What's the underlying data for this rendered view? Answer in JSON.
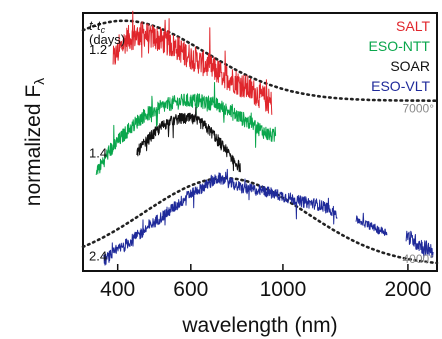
{
  "chart_data": {
    "type": "line",
    "xlabel": "wavelength (nm)",
    "ylabel_main": "normalized F",
    "ylabel_sub": "λ",
    "x_scale": "log",
    "xlim": [
      330,
      2350
    ],
    "x_ticks": [
      400,
      600,
      1000,
      2000
    ],
    "x_tick_labels": [
      "400",
      "600",
      "1000",
      "2000"
    ],
    "epoch_header": "t-t",
    "epoch_header_sub": "c",
    "epoch_units": "(days)",
    "legend": [
      {
        "label": "SALT",
        "color": "#e0262c"
      },
      {
        "label": "ESO-NTT",
        "color": "#0aa64c"
      },
      {
        "label": "SOAR",
        "color": "#111111"
      },
      {
        "label": "ESO-VLT",
        "color": "#1f2a9a"
      }
    ],
    "epochs": [
      {
        "label": "1.2",
        "level": 0.86
      },
      {
        "label": "1.4",
        "level": 0.46
      },
      {
        "label": "2.4",
        "level": 0.06
      }
    ],
    "blackbody": [
      {
        "label": "7000°",
        "temperature_K": 7000,
        "peak_nm": 414,
        "peak_level": 0.97,
        "baseline": 0.66,
        "color": "#222222"
      },
      {
        "label": "4000°",
        "temperature_K": 4000,
        "peak_nm": 725,
        "peak_level": 0.36,
        "baseline": 0.02,
        "color": "#222222"
      }
    ],
    "series": [
      {
        "name": "SALT",
        "color": "#e0262c",
        "noise": 0.05,
        "x_nm": [
          390,
          420,
          460,
          500,
          550,
          600,
          650,
          700,
          760,
          820,
          880,
          920,
          940
        ],
        "level": [
          0.82,
          0.9,
          0.92,
          0.9,
          0.87,
          0.83,
          0.8,
          0.77,
          0.74,
          0.71,
          0.68,
          0.66,
          0.65
        ]
      },
      {
        "name": "ESO-NTT",
        "color": "#0aa64c",
        "noise": 0.028,
        "x_nm": [
          355,
          380,
          420,
          460,
          500,
          540,
          580,
          620,
          680,
          740,
          800,
          860,
          920,
          960
        ],
        "level": [
          0.38,
          0.46,
          0.54,
          0.6,
          0.63,
          0.65,
          0.66,
          0.66,
          0.65,
          0.62,
          0.59,
          0.56,
          0.53,
          0.52
        ]
      },
      {
        "name": "SOAR",
        "color": "#111111",
        "noise": 0.022,
        "x_nm": [
          445,
          480,
          520,
          560,
          600,
          640,
          680,
          720,
          760,
          790
        ],
        "level": [
          0.46,
          0.52,
          0.57,
          0.59,
          0.59,
          0.57,
          0.53,
          0.48,
          0.43,
          0.4
        ]
      },
      {
        "name": "ESO-VLT",
        "color": "#1f2a9a",
        "noise": 0.022,
        "x_nm": [
          370,
          400,
          450,
          500,
          550,
          600,
          650,
          700,
          750,
          800,
          900,
          1000,
          1100,
          1200,
          1300,
          1350
        ],
        "level": [
          0.04,
          0.08,
          0.14,
          0.2,
          0.25,
          0.3,
          0.33,
          0.36,
          0.34,
          0.32,
          0.31,
          0.29,
          0.27,
          0.26,
          0.24,
          0.22
        ]
      },
      {
        "name": "ESO-VLT",
        "color": "#1f2a9a",
        "noise": 0.015,
        "x_nm": [
          1500,
          1600,
          1700,
          1780
        ],
        "level": [
          0.2,
          0.18,
          0.16,
          0.15
        ]
      },
      {
        "name": "ESO-VLT",
        "color": "#1f2a9a",
        "noise": 0.03,
        "x_nm": [
          1980,
          2100,
          2200,
          2300
        ],
        "level": [
          0.14,
          0.11,
          0.09,
          0.08
        ]
      }
    ]
  }
}
